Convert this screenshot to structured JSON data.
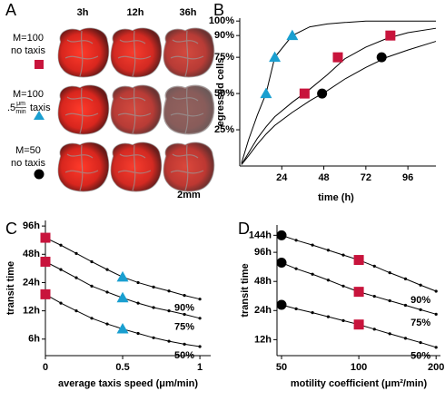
{
  "panel_a": {
    "label": "A",
    "columns": [
      "3h",
      "12h",
      "36h"
    ],
    "rows": [
      {
        "line1": "M=100",
        "line2": "no taxis"
      },
      {
        "line1": "M=100",
        "speed": ".5",
        "unit_num": "μm",
        "unit_den": "min",
        "line2": "taxis"
      },
      {
        "line1": "M=50",
        "line2": "no taxis"
      }
    ],
    "scale_bar": "2mm"
  },
  "chart_data": [
    {
      "type": "line",
      "label": "B",
      "ylabel": "egressed cells",
      "xlabel": "time (h)",
      "xlim": [
        0,
        112
      ],
      "ylim": [
        0,
        102
      ],
      "xticks": [
        24,
        48,
        72,
        96
      ],
      "yticks": [
        {
          "value": 25,
          "label": "25%"
        },
        {
          "value": 50,
          "label": "50%"
        },
        {
          "value": 75,
          "label": "75%"
        },
        {
          "value": 90,
          "label": "90%"
        },
        {
          "value": 100,
          "label": "100%"
        }
      ],
      "series": [
        {
          "color": "#000000",
          "x": [
            1,
            5,
            10,
            15,
            20,
            30,
            40,
            50,
            60,
            72,
            84,
            96,
            112
          ],
          "values": [
            2,
            18,
            35,
            50,
            75,
            90,
            96,
            98,
            99,
            100,
            100,
            100,
            100
          ]
        },
        {
          "color": "#000000",
          "x": [
            1,
            5,
            10,
            15,
            20,
            30,
            40,
            50,
            60,
            72,
            84,
            96,
            112
          ],
          "values": [
            1,
            9,
            19,
            27,
            34,
            44,
            53,
            63,
            74,
            82,
            88,
            92,
            95
          ]
        },
        {
          "color": "#000000",
          "x": [
            1,
            5,
            10,
            15,
            20,
            30,
            40,
            50,
            60,
            72,
            84,
            96,
            112
          ],
          "values": [
            1,
            7,
            15,
            22,
            28,
            37,
            45,
            52,
            60,
            68,
            75,
            80,
            86
          ]
        },
        {
          "color": "#1a9fd0",
          "marker": "triangle",
          "x": [
            15,
            20,
            30
          ],
          "values": [
            50,
            75,
            90
          ]
        },
        {
          "color": "#c8143c",
          "marker": "square",
          "x": [
            37,
            56,
            86
          ],
          "values": [
            50,
            75,
            90
          ]
        },
        {
          "color": "#000000",
          "marker": "circle",
          "x": [
            47,
            81
          ],
          "values": [
            50,
            75
          ]
        }
      ]
    },
    {
      "type": "line",
      "label": "C",
      "ylabel": "transit time",
      "xlabel": "average taxis speed (μm/min)",
      "yscale": "log",
      "xlim": [
        0,
        1.07
      ],
      "ylim": [
        4,
        110
      ],
      "xticks": [
        0,
        0.5,
        1
      ],
      "yticks": [
        {
          "value": 6,
          "label": "6h"
        },
        {
          "value": 12,
          "label": "12h"
        },
        {
          "value": 24,
          "label": "24h"
        },
        {
          "value": 48,
          "label": "48h"
        },
        {
          "value": 96,
          "label": "96h"
        }
      ],
      "series": [
        {
          "color": "#000000",
          "dots": true,
          "end_label": "90%",
          "x": [
            0,
            0.1,
            0.2,
            0.3,
            0.4,
            0.5,
            0.6,
            0.7,
            0.8,
            0.9,
            1.0
          ],
          "values": [
            72,
            60,
            49,
            40,
            33,
            27.5,
            24,
            21.5,
            19.5,
            17.5,
            16
          ]
        },
        {
          "color": "#000000",
          "dots": true,
          "end_label": "75%",
          "x": [
            0,
            0.1,
            0.2,
            0.3,
            0.4,
            0.5,
            0.6,
            0.7,
            0.8,
            0.9,
            1.0
          ],
          "values": [
            40,
            33,
            27,
            22,
            19,
            16.5,
            14.5,
            13,
            12,
            11,
            10
          ]
        },
        {
          "color": "#000000",
          "dots": true,
          "end_label": "50%",
          "x": [
            0,
            0.1,
            0.2,
            0.3,
            0.4,
            0.5,
            0.6,
            0.7,
            0.8,
            0.9,
            1.0
          ],
          "values": [
            18,
            14.5,
            12,
            10,
            8.7,
            7.7,
            6.9,
            6.2,
            5.7,
            5.3,
            5.0
          ]
        },
        {
          "color": "#c8143c",
          "marker": "square",
          "x": [
            0,
            0,
            0
          ],
          "values": [
            72,
            40,
            18
          ]
        },
        {
          "color": "#1a9fd0",
          "marker": "triangle",
          "x": [
            0.5,
            0.5,
            0.5
          ],
          "values": [
            27.5,
            16.5,
            7.7
          ]
        }
      ]
    },
    {
      "type": "line",
      "label": "D",
      "ylabel": "transit time",
      "xlabel": "motility coefficient (μm²/min)",
      "xscale": "log",
      "yscale": "log",
      "xlim": [
        48,
        208
      ],
      "ylim": [
        8.2,
        184
      ],
      "xticks": [
        50,
        100,
        200
      ],
      "yticks": [
        {
          "value": 12,
          "label": "12h"
        },
        {
          "value": 24,
          "label": "24h"
        },
        {
          "value": 48,
          "label": "48h"
        },
        {
          "value": 96,
          "label": "96h"
        },
        {
          "value": 144,
          "label": "144h"
        }
      ],
      "series": [
        {
          "color": "#000000",
          "dots": true,
          "end_label": "90%",
          "x": [
            50,
            57,
            66,
            76,
            87,
            100,
            115,
            132,
            152,
            174,
            200
          ],
          "values": [
            144,
            128,
            114,
            101,
            90,
            80,
            69,
            59,
            51,
            44,
            38
          ]
        },
        {
          "color": "#000000",
          "dots": true,
          "end_label": "75%",
          "x": [
            50,
            57,
            66,
            76,
            87,
            100,
            115,
            132,
            152,
            174,
            200
          ],
          "values": [
            75,
            65,
            57,
            49.5,
            43,
            37.5,
            33.7,
            30.3,
            27.2,
            24.5,
            22
          ]
        },
        {
          "color": "#000000",
          "dots": true,
          "end_label": "50%",
          "x": [
            50,
            57,
            66,
            76,
            87,
            100,
            115,
            132,
            152,
            174,
            200
          ],
          "values": [
            27.5,
            25,
            22.8,
            20.7,
            18.9,
            17.2,
            15.4,
            13.8,
            12.4,
            11.2,
            10
          ]
        },
        {
          "color": "#000000",
          "marker": "circle",
          "x": [
            50,
            50,
            50
          ],
          "values": [
            144,
            75,
            27.5
          ]
        },
        {
          "color": "#c8143c",
          "marker": "square",
          "x": [
            100,
            100,
            100
          ],
          "values": [
            80,
            37.5,
            17.2
          ]
        }
      ]
    }
  ]
}
